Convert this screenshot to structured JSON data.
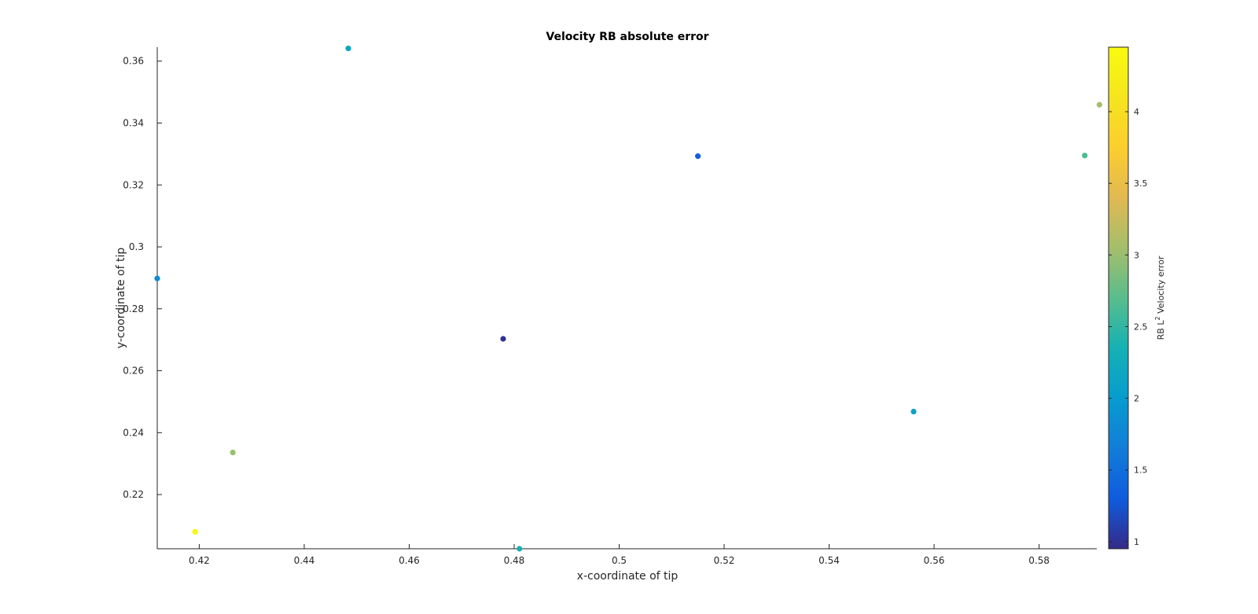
{
  "chart_data": {
    "type": "scatter",
    "title": "Velocity RB absolute error",
    "xlabel": "x-coordinate of tip",
    "ylabel": "y-coordinate of tip",
    "xlim": [
      0.412,
      0.591
    ],
    "ylim": [
      0.2025,
      0.3645
    ],
    "xticks": [
      0.42,
      0.44,
      0.46,
      0.48,
      0.5,
      0.52,
      0.54,
      0.56,
      0.58
    ],
    "xtick_labels": [
      "0.42",
      "0.44",
      "0.46",
      "0.48",
      "0.5",
      "0.52",
      "0.54",
      "0.56",
      "0.58"
    ],
    "yticks": [
      0.22,
      0.24,
      0.26,
      0.28,
      0.3,
      0.32,
      0.34,
      0.36
    ],
    "ytick_labels": [
      "0.22",
      "0.24",
      "0.26",
      "0.28",
      "0.3",
      "0.32",
      "0.34",
      "0.36"
    ],
    "grid": false,
    "points": [
      {
        "x": 0.4484,
        "y": 0.3641,
        "c": 2.15
      },
      {
        "x": 0.412,
        "y": 0.2898,
        "c": 1.82
      },
      {
        "x": 0.4264,
        "y": 0.2336,
        "c": 3.0
      },
      {
        "x": 0.4192,
        "y": 0.208,
        "c": 4.4
      },
      {
        "x": 0.4779,
        "y": 0.2703,
        "c": 1.0
      },
      {
        "x": 0.481,
        "y": 0.2025,
        "c": 2.35
      },
      {
        "x": 0.515,
        "y": 0.3293,
        "c": 1.35
      },
      {
        "x": 0.5561,
        "y": 0.2468,
        "c": 2.1
      },
      {
        "x": 0.5887,
        "y": 0.3295,
        "c": 2.65
      },
      {
        "x": 0.5915,
        "y": 0.3459,
        "c": 3.05
      }
    ],
    "colorbar": {
      "label": "RB L",
      "label_superscript": "2",
      "label_suffix": " Velocity error",
      "clim": [
        0.95,
        4.45
      ],
      "ticks": [
        1,
        1.5,
        2,
        2.5,
        3,
        3.5,
        4
      ],
      "tick_labels": [
        "1",
        "1.5",
        "2",
        "2.5",
        "3",
        "3.5",
        "4"
      ],
      "colormap": "parula"
    }
  }
}
